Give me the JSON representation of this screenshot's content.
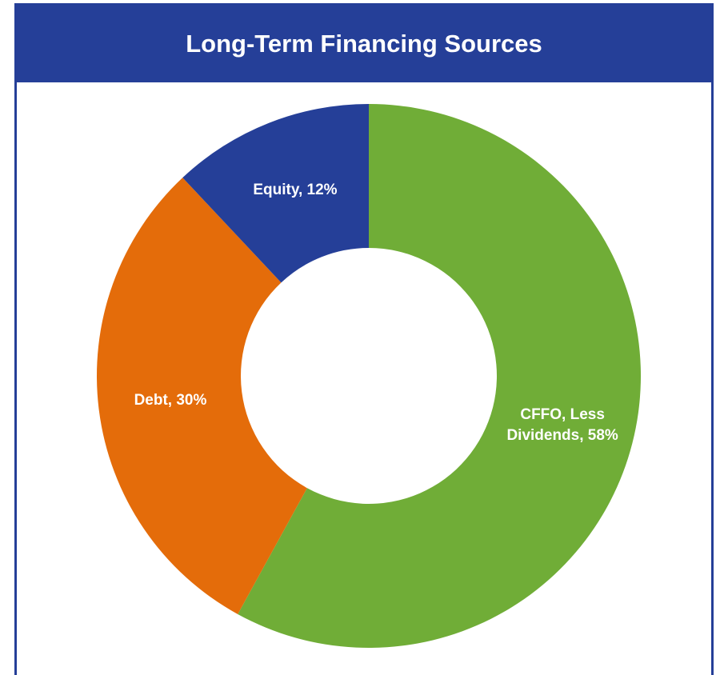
{
  "chart_data": {
    "type": "donut",
    "title": "Long-Term Financing Sources",
    "values": [
      58,
      30,
      12
    ],
    "value_labels": [
      "CFFO, Less Dividends, 58%",
      "Debt, 30%",
      "Equity, 12%"
    ],
    "colors": [
      "#70ad37",
      "#e46c0a",
      "#253f98"
    ],
    "start_angle": 0,
    "direction": "clockwise"
  }
}
